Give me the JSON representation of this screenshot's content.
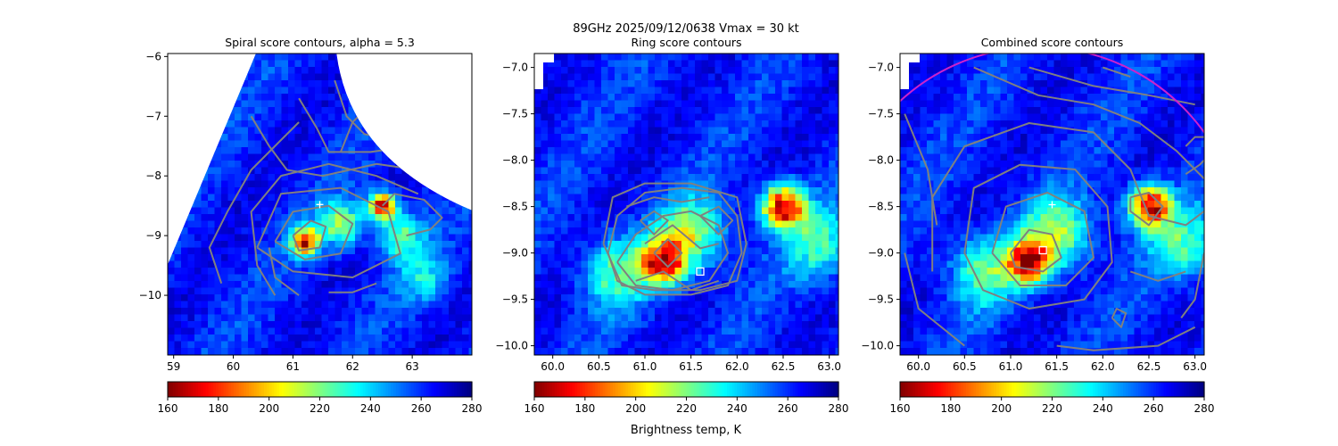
{
  "figure": {
    "suptitle_line1": "89GHz  2025/09/12/0638    Vmax = 30 kt"
  },
  "colorbar": {
    "label": "Brightness temp, K",
    "ticks": [
      160,
      180,
      200,
      220,
      240,
      260,
      280
    ],
    "range": [
      160,
      280
    ],
    "colormap": "jet_r"
  },
  "colors": {
    "contour": "#808080",
    "magenta_ring": "#cc22cc",
    "marker": "#ffffff"
  },
  "chart_data": [
    {
      "type": "heatmap",
      "title": "Spiral score contours, alpha =  5.3",
      "xlim": [
        58.9,
        64.0
      ],
      "ylim": [
        -11.0,
        -5.95
      ],
      "xticks": [
        59,
        60,
        61,
        62,
        63
      ],
      "yticks": [
        -6,
        -7,
        -8,
        -9,
        -10
      ],
      "swath_edge": true,
      "cold_spots": [
        {
          "x": 62.5,
          "y": -8.5,
          "tb": 165
        },
        {
          "x": 61.2,
          "y": -9.1,
          "tb": 175
        },
        {
          "x": 61.8,
          "y": -8.8,
          "tb": 215
        },
        {
          "x": 62.8,
          "y": -9.0,
          "tb": 225
        },
        {
          "x": 63.2,
          "y": -9.7,
          "tb": 235
        }
      ],
      "center_marker": {
        "x": 61.45,
        "y": -8.48,
        "symbol": "+"
      },
      "contours": [
        [
          [
            61.0,
            -9.0
          ],
          [
            61.3,
            -8.75
          ],
          [
            61.55,
            -8.85
          ],
          [
            61.45,
            -9.2
          ],
          [
            61.1,
            -9.25
          ],
          [
            61.0,
            -9.0
          ]
        ],
        [
          [
            60.7,
            -9.1
          ],
          [
            61.0,
            -8.6
          ],
          [
            61.6,
            -8.5
          ],
          [
            62.0,
            -8.8
          ],
          [
            61.8,
            -9.3
          ],
          [
            61.2,
            -9.4
          ],
          [
            60.7,
            -9.1
          ]
        ],
        [
          [
            60.4,
            -9.2
          ],
          [
            60.8,
            -8.3
          ],
          [
            61.8,
            -8.2
          ],
          [
            62.6,
            -8.6
          ],
          [
            62.8,
            -9.3
          ],
          [
            62.0,
            -9.7
          ],
          [
            61.0,
            -9.6
          ],
          [
            60.4,
            -9.2
          ]
        ],
        [
          [
            60.7,
            -10.0
          ],
          [
            60.4,
            -9.5
          ],
          [
            60.3,
            -8.6
          ],
          [
            60.8,
            -8.0
          ],
          [
            61.6,
            -7.8
          ],
          [
            62.4,
            -8.0
          ],
          [
            63.1,
            -8.3
          ]
        ],
        [
          [
            61.1,
            -10.0
          ],
          [
            60.7,
            -9.7
          ],
          [
            60.6,
            -9.2
          ]
        ],
        [
          [
            59.8,
            -9.8
          ],
          [
            59.6,
            -9.2
          ],
          [
            59.9,
            -8.6
          ],
          [
            60.3,
            -7.9
          ],
          [
            60.8,
            -7.4
          ],
          [
            61.1,
            -7.1
          ]
        ],
        [
          [
            60.3,
            -7.0
          ],
          [
            60.6,
            -7.5
          ],
          [
            60.9,
            -7.9
          ],
          [
            61.5,
            -8.0
          ],
          [
            62.4,
            -7.8
          ],
          [
            63.1,
            -7.9
          ]
        ],
        [
          [
            61.1,
            -6.7
          ],
          [
            61.4,
            -7.2
          ],
          [
            61.6,
            -7.6
          ],
          [
            62.3,
            -7.6
          ],
          [
            63.0,
            -7.5
          ]
        ],
        [
          [
            61.7,
            -6.4
          ],
          [
            61.9,
            -7.0
          ],
          [
            62.2,
            -7.3
          ],
          [
            62.8,
            -7.4
          ]
        ],
        [
          [
            61.8,
            -7.6
          ],
          [
            62.0,
            -7.1
          ],
          [
            62.2,
            -6.9
          ]
        ],
        [
          [
            62.2,
            -7.1
          ],
          [
            62.3,
            -7.0
          ],
          [
            62.6,
            -7.1
          ],
          [
            62.8,
            -7.25
          ],
          [
            63.1,
            -7.35
          ],
          [
            63.5,
            -7.35
          ]
        ],
        [
          [
            62.5,
            -8.5
          ],
          [
            62.7,
            -8.3
          ],
          [
            63.2,
            -8.4
          ],
          [
            63.5,
            -8.7
          ],
          [
            63.3,
            -8.9
          ],
          [
            62.9,
            -9.0
          ]
        ],
        [
          [
            62.4,
            -9.8
          ],
          [
            62.0,
            -9.95
          ],
          [
            61.6,
            -9.95
          ]
        ]
      ]
    },
    {
      "type": "heatmap",
      "title": "Ring score contours",
      "xlim": [
        59.8,
        63.1
      ],
      "ylim": [
        -10.1,
        -6.85
      ],
      "xticks": [
        60.0,
        60.5,
        61.0,
        61.5,
        62.0,
        62.5,
        63.0
      ],
      "yticks": [
        -7.0,
        -7.5,
        -8.0,
        -8.5,
        -9.0,
        -9.5,
        -10.0
      ],
      "cold_spots": [
        {
          "x": 62.5,
          "y": -8.5,
          "tb": 165
        },
        {
          "x": 61.2,
          "y": -9.1,
          "tb": 175
        },
        {
          "x": 61.5,
          "y": -8.8,
          "tb": 215
        },
        {
          "x": 62.9,
          "y": -8.9,
          "tb": 228
        },
        {
          "x": 60.7,
          "y": -9.2,
          "tb": 225
        }
      ],
      "center_marker": {
        "x": 61.6,
        "y": -9.2,
        "symbol": "square"
      },
      "contours": [
        [
          [
            61.1,
            -9.0
          ],
          [
            61.25,
            -8.85
          ],
          [
            61.4,
            -9.0
          ],
          [
            61.25,
            -9.15
          ],
          [
            61.1,
            -9.0
          ]
        ],
        [
          [
            61.6,
            -8.6
          ],
          [
            61.8,
            -8.5
          ],
          [
            61.95,
            -8.65
          ],
          [
            61.8,
            -8.8
          ],
          [
            61.6,
            -8.6
          ]
        ],
        [
          [
            60.95,
            -8.65
          ],
          [
            61.1,
            -8.55
          ],
          [
            61.25,
            -8.65
          ],
          [
            61.1,
            -8.8
          ],
          [
            60.95,
            -8.65
          ]
        ],
        [
          [
            60.7,
            -9.1
          ],
          [
            60.9,
            -8.8
          ],
          [
            61.2,
            -8.6
          ],
          [
            61.5,
            -8.55
          ],
          [
            61.8,
            -8.7
          ],
          [
            61.9,
            -9.0
          ],
          [
            61.7,
            -9.3
          ],
          [
            61.3,
            -9.4
          ],
          [
            60.9,
            -9.35
          ],
          [
            60.7,
            -9.1
          ]
        ],
        [
          [
            60.6,
            -9.0
          ],
          [
            60.7,
            -8.6
          ],
          [
            61.0,
            -8.35
          ],
          [
            61.4,
            -8.3
          ],
          [
            61.8,
            -8.35
          ],
          [
            62.0,
            -8.6
          ],
          [
            62.05,
            -9.0
          ],
          [
            61.9,
            -9.35
          ],
          [
            61.5,
            -9.45
          ],
          [
            61.0,
            -9.45
          ],
          [
            60.7,
            -9.3
          ],
          [
            60.6,
            -9.0
          ]
        ],
        [
          [
            60.55,
            -8.9
          ],
          [
            60.65,
            -8.4
          ],
          [
            61.0,
            -8.25
          ],
          [
            61.5,
            -8.25
          ],
          [
            62.0,
            -8.4
          ],
          [
            62.1,
            -8.9
          ],
          [
            62.0,
            -9.3
          ],
          [
            61.6,
            -9.4
          ],
          [
            61.1,
            -9.4
          ],
          [
            60.75,
            -9.35
          ],
          [
            60.55,
            -8.9
          ]
        ],
        [
          [
            60.9,
            -9.3
          ],
          [
            61.2,
            -9.2
          ],
          [
            61.5,
            -9.4
          ],
          [
            61.8,
            -9.3
          ]
        ],
        [
          [
            61.0,
            -8.9
          ],
          [
            61.3,
            -8.7
          ],
          [
            61.6,
            -8.95
          ],
          [
            61.8,
            -8.9
          ]
        ],
        [
          [
            60.8,
            -8.5
          ],
          [
            61.1,
            -8.4
          ],
          [
            61.4,
            -8.45
          ],
          [
            61.7,
            -8.4
          ]
        ]
      ]
    },
    {
      "type": "heatmap",
      "title": "Combined score contours",
      "xlim": [
        59.8,
        63.1
      ],
      "ylim": [
        -10.1,
        -6.85
      ],
      "xticks": [
        60.0,
        60.5,
        61.0,
        61.5,
        62.0,
        62.5,
        63.0
      ],
      "yticks": [
        -7.0,
        -7.5,
        -8.0,
        -8.5,
        -9.0,
        -9.5,
        -10.0
      ],
      "cold_spots": [
        {
          "x": 62.5,
          "y": -8.5,
          "tb": 165
        },
        {
          "x": 61.2,
          "y": -9.1,
          "tb": 175
        },
        {
          "x": 61.5,
          "y": -8.8,
          "tb": 215
        },
        {
          "x": 62.9,
          "y": -8.9,
          "tb": 228
        },
        {
          "x": 60.7,
          "y": -9.2,
          "tb": 225
        }
      ],
      "center_marker": {
        "x": 61.45,
        "y": -8.48,
        "symbol": "+"
      },
      "center_marker_2": {
        "x": 61.35,
        "y": -8.97,
        "symbol": "square"
      },
      "magenta_ring": {
        "cx": 61.3,
        "cy": -9.0,
        "r": 2.22
      },
      "contours": [
        [
          [
            61.0,
            -9.0
          ],
          [
            61.2,
            -8.75
          ],
          [
            61.45,
            -8.8
          ],
          [
            61.55,
            -9.05
          ],
          [
            61.35,
            -9.2
          ],
          [
            61.05,
            -9.15
          ],
          [
            61.0,
            -9.0
          ]
        ],
        [
          [
            60.8,
            -9.0
          ],
          [
            60.95,
            -8.5
          ],
          [
            61.4,
            -8.35
          ],
          [
            61.8,
            -8.55
          ],
          [
            61.9,
            -9.05
          ],
          [
            61.6,
            -9.35
          ],
          [
            61.1,
            -9.35
          ],
          [
            60.8,
            -9.0
          ]
        ],
        [
          [
            60.5,
            -9.0
          ],
          [
            60.6,
            -8.3
          ],
          [
            61.1,
            -8.05
          ],
          [
            61.7,
            -8.1
          ],
          [
            62.05,
            -8.5
          ],
          [
            62.1,
            -9.1
          ],
          [
            61.8,
            -9.5
          ],
          [
            61.2,
            -9.6
          ],
          [
            60.7,
            -9.4
          ],
          [
            60.5,
            -9.0
          ]
        ],
        [
          [
            60.15,
            -9.2
          ],
          [
            60.15,
            -8.4
          ],
          [
            60.5,
            -7.85
          ],
          [
            61.2,
            -7.6
          ],
          [
            61.9,
            -7.7
          ],
          [
            62.3,
            -8.1
          ],
          [
            62.5,
            -8.6
          ],
          [
            62.9,
            -8.7
          ],
          [
            63.1,
            -8.55
          ]
        ],
        [
          [
            60.5,
            -10.0
          ],
          [
            60.0,
            -9.6
          ],
          [
            59.85,
            -9.0
          ]
        ],
        [
          [
            59.85,
            -7.5
          ],
          [
            60.1,
            -8.1
          ],
          [
            60.2,
            -8.7
          ]
        ],
        [
          [
            60.6,
            -7.0
          ],
          [
            61.3,
            -7.3
          ],
          [
            61.9,
            -7.4
          ],
          [
            62.4,
            -7.6
          ],
          [
            62.8,
            -7.9
          ],
          [
            63.1,
            -8.2
          ]
        ],
        [
          [
            61.2,
            -7.0
          ],
          [
            61.9,
            -7.2
          ],
          [
            62.5,
            -7.3
          ],
          [
            63.0,
            -7.4
          ]
        ],
        [
          [
            62.0,
            -7.0
          ],
          [
            62.3,
            -7.1
          ]
        ],
        [
          [
            62.9,
            -7.85
          ],
          [
            63.0,
            -7.75
          ],
          [
            63.1,
            -7.75
          ]
        ],
        [
          [
            62.9,
            -8.15
          ],
          [
            63.05,
            -8.05
          ],
          [
            63.1,
            -8.0
          ]
        ],
        [
          [
            62.1,
            -9.7
          ],
          [
            62.15,
            -9.6
          ],
          [
            62.25,
            -9.65
          ],
          [
            62.2,
            -9.8
          ],
          [
            62.1,
            -9.7
          ]
        ],
        [
          [
            62.3,
            -8.4
          ],
          [
            62.5,
            -8.35
          ],
          [
            62.65,
            -8.5
          ],
          [
            62.5,
            -8.7
          ],
          [
            62.3,
            -8.55
          ],
          [
            62.3,
            -8.4
          ]
        ],
        [
          [
            61.5,
            -10.0
          ],
          [
            61.9,
            -10.05
          ],
          [
            62.6,
            -10.0
          ],
          [
            63.0,
            -9.8
          ]
        ],
        [
          [
            63.1,
            -9.0
          ],
          [
            63.0,
            -9.5
          ],
          [
            62.85,
            -9.7
          ]
        ],
        [
          [
            62.3,
            -9.2
          ],
          [
            62.6,
            -9.3
          ],
          [
            62.9,
            -9.2
          ]
        ]
      ]
    }
  ]
}
